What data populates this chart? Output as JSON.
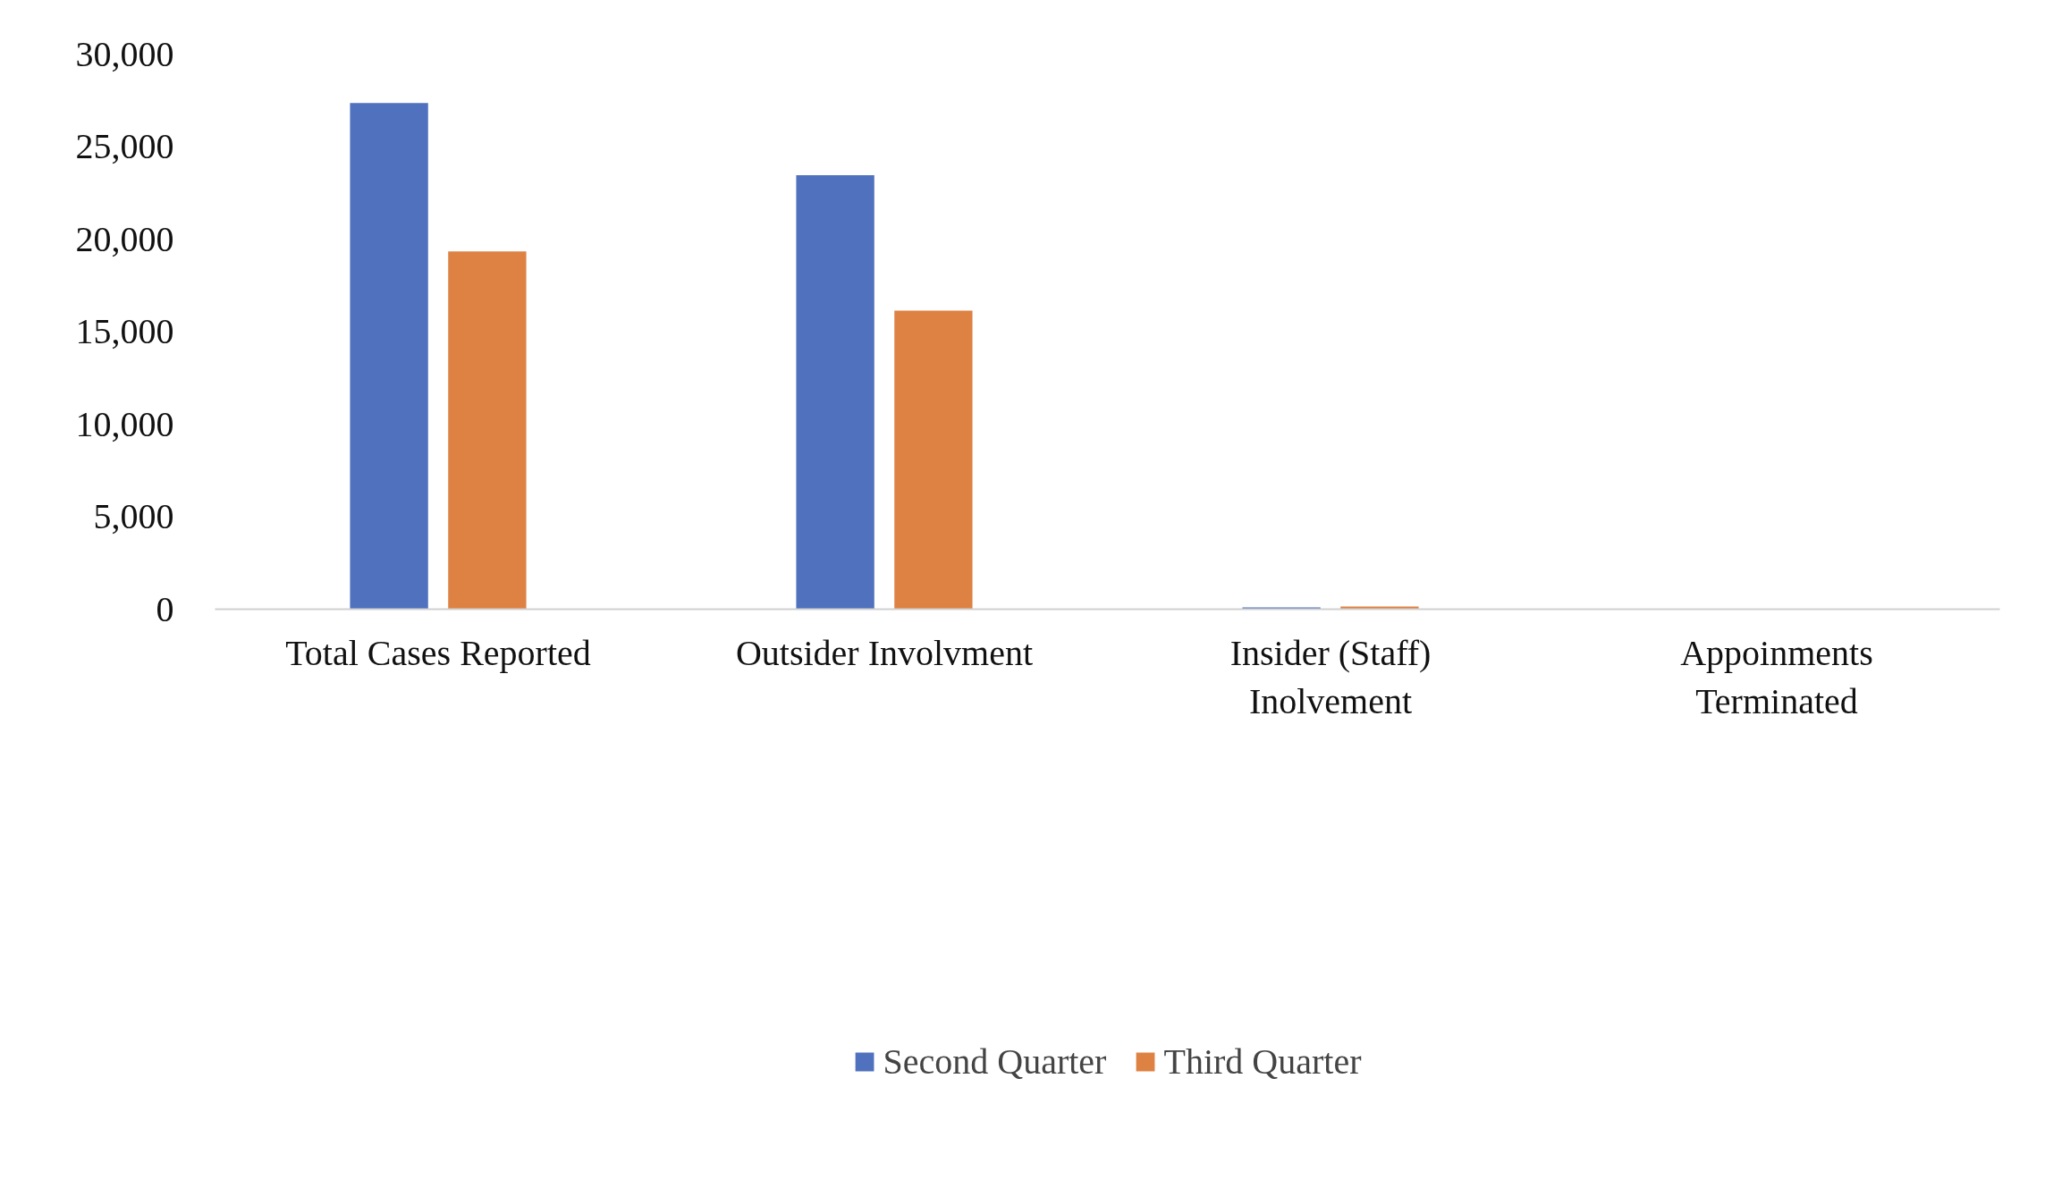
{
  "chart_data": {
    "type": "bar",
    "categories": [
      "Total Cases Reported",
      "Outsider Involvment",
      "Insider (Staff) Inolvement",
      "Appoinments Terminated"
    ],
    "series": [
      {
        "name": "Second Quarter",
        "color": "#4f71be",
        "values": [
          27350,
          23450,
          100,
          0
        ]
      },
      {
        "name": "Third Quarter",
        "color": "#de8244",
        "values": [
          19330,
          16140,
          150,
          0
        ]
      }
    ],
    "ylim": [
      0,
      30000
    ],
    "yticks": [
      {
        "value": 0,
        "label": "0"
      },
      {
        "value": 5000,
        "label": "5,000"
      },
      {
        "value": 10000,
        "label": "10,000"
      },
      {
        "value": 15000,
        "label": "15,000"
      },
      {
        "value": 20000,
        "label": "20,000"
      },
      {
        "value": 25000,
        "label": "25,000"
      },
      {
        "value": 30000,
        "label": "30,000"
      }
    ],
    "grid": false,
    "legend": "bottom"
  }
}
